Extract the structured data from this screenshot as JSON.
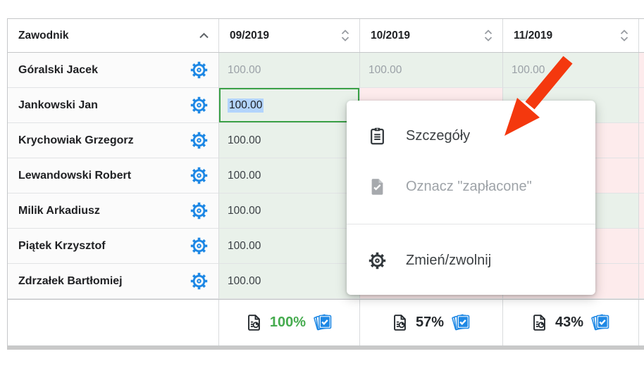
{
  "table": {
    "header": {
      "player_column": "Zawodnik",
      "player_sort": "ascending",
      "months": [
        "09/2019",
        "10/2019",
        "11/2019"
      ]
    },
    "rows": [
      {
        "name": "Góralski Jacek",
        "cells": [
          {
            "value": "100.00",
            "paid": true,
            "muted": true
          },
          {
            "value": "100.00",
            "paid": true,
            "muted": true
          },
          {
            "value": "100.00",
            "paid": true,
            "muted": true
          }
        ]
      },
      {
        "name": "Jankowski Jan",
        "cells": [
          {
            "value": "100.00",
            "paid": true,
            "selected": true
          },
          {
            "value": "",
            "paid": false
          },
          {
            "value": "",
            "paid": true
          }
        ]
      },
      {
        "name": "Krychowiak Grzegorz",
        "cells": [
          {
            "value": "100.00",
            "paid": true
          },
          {
            "value": "",
            "paid": true
          },
          {
            "value": "",
            "paid": false
          }
        ]
      },
      {
        "name": "Lewandowski Robert",
        "cells": [
          {
            "value": "100.00",
            "paid": true
          },
          {
            "value": "",
            "paid": true
          },
          {
            "value": "",
            "paid": false
          }
        ]
      },
      {
        "name": "Milik Arkadiusz",
        "cells": [
          {
            "value": "100.00",
            "paid": true
          },
          {
            "value": "",
            "paid": true
          },
          {
            "value": "",
            "paid": true
          }
        ]
      },
      {
        "name": "Piątek Krzysztof",
        "cells": [
          {
            "value": "100.00",
            "paid": true
          },
          {
            "value": "",
            "paid": false
          },
          {
            "value": "",
            "paid": false
          }
        ]
      },
      {
        "name": "Zdrzałek Bartłomiej",
        "cells": [
          {
            "value": "100.00",
            "paid": true
          },
          {
            "value": "",
            "paid": false
          },
          {
            "value": "",
            "paid": false
          }
        ]
      }
    ],
    "footer": {
      "stats": [
        {
          "percent": "100%",
          "highlight": true
        },
        {
          "percent": "57%",
          "highlight": false
        },
        {
          "percent": "43%",
          "highlight": false
        }
      ]
    }
  },
  "edit": {
    "value": "100.00",
    "text_selected": true
  },
  "context_menu": {
    "items": [
      {
        "label": "Szczegóły",
        "icon": "clipboard-icon",
        "name": "details",
        "disabled": false
      },
      {
        "label": "Oznacz \"zapłacone\"",
        "icon": "document-check-icon",
        "name": "mark-paid",
        "disabled": true
      },
      {
        "label": "Zmień/zwolnij",
        "icon": "gear-icon",
        "name": "change-release",
        "disabled": false
      }
    ]
  },
  "colors": {
    "paid_bg": "#e9f1ea",
    "unpaid_bg": "#fdebec",
    "accent_blue": "#1e88e5",
    "selected_cell_border": "#3aa146",
    "paid_percent_green": "#45ab4e",
    "arrow_red": "#f4380e",
    "text_selection_blue": "#b3d4fc"
  }
}
